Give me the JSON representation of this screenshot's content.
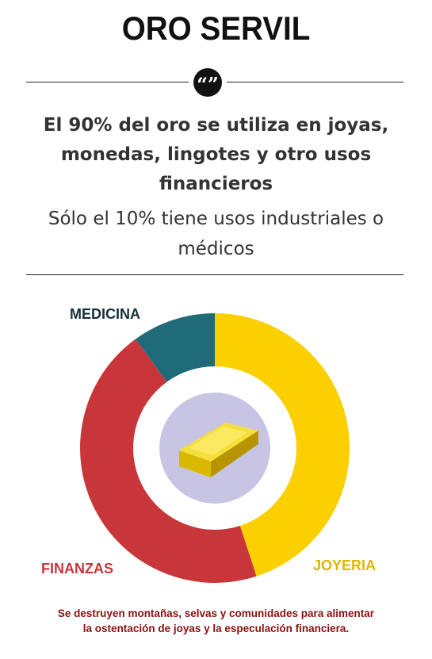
{
  "header": {
    "title": "ORO SERVIL",
    "quote_icon": "quote-icon",
    "headline_lines": [
      "El 90% del oro se utiliza en joyas,",
      "monedas, lingotes y otro usos",
      "financieros"
    ],
    "subline_lines": [
      "Sólo el 10% tiene usos industriales o",
      "médicos"
    ]
  },
  "chart_data": {
    "type": "pie",
    "categories": [
      "JOYERIA",
      "FINANZAS",
      "MEDICINA"
    ],
    "values": [
      45,
      45,
      10
    ],
    "colors": [
      "#fcd000",
      "#c8363a",
      "#1f6b7a"
    ],
    "center_icon": "gold-bar-icon",
    "center_color": "#c8c4e4"
  },
  "caption_lines": [
    "Se destruyen montañas, selvas y comunidades para alimentar",
    "la ostentación de joyas y la especulación financiera."
  ]
}
